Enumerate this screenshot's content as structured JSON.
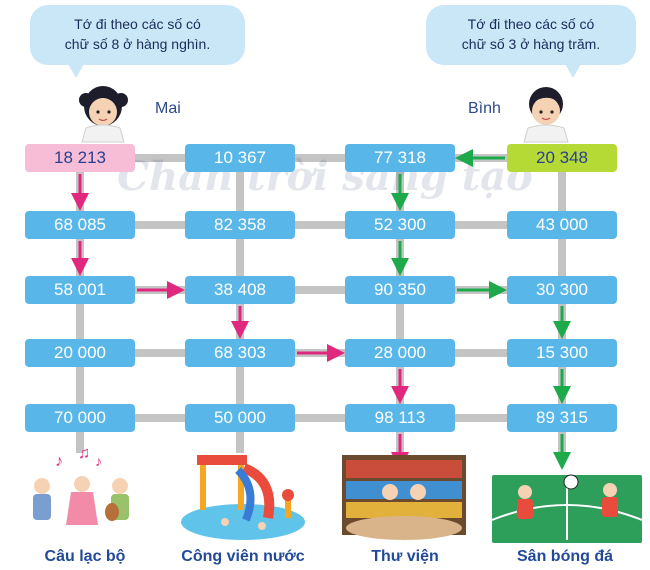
{
  "bubbles": {
    "left": {
      "line1": "Tớ đi theo các số có",
      "line2": "chữ số 8 ở hàng nghìn."
    },
    "right": {
      "line1": "Tớ đi theo các số có",
      "line2": "chữ số 3 ở hàng trăm."
    }
  },
  "characters": {
    "left_name": "Mai",
    "right_name": "Bình"
  },
  "watermark": "Chân trời sáng tạo",
  "grid": {
    "rows": [
      [
        "18 213",
        "10 367",
        "77 318",
        "20 348"
      ],
      [
        "68 085",
        "82 358",
        "52 300",
        "43 000"
      ],
      [
        "58 001",
        "38 408",
        "90 350",
        "30 300"
      ],
      [
        "20 000",
        "68 303",
        "28 000",
        "15 300"
      ],
      [
        "70 000",
        "50 000",
        "98 113",
        "89 315"
      ]
    ]
  },
  "destinations": [
    "Câu lạc bộ",
    "Công viên nước",
    "Thư viện",
    "Sân bóng đá"
  ],
  "colors": {
    "box": "#58b7e8",
    "mai_start": "#f7bcd6",
    "binh_start": "#b5da35",
    "mai_path": "#e0297e",
    "binh_path": "#1eaa4a",
    "road": "#c4c4c4",
    "bubble": "#c9e7f7",
    "label": "#234a9a"
  },
  "paths": {
    "mai": [
      [
        0,
        0
      ],
      [
        1,
        0
      ],
      [
        2,
        0
      ],
      [
        2,
        1
      ],
      [
        3,
        1
      ],
      [
        3,
        2
      ],
      [
        4,
        2
      ],
      [
        5,
        2
      ]
    ],
    "binh": [
      [
        0,
        3
      ],
      [
        0,
        2
      ],
      [
        1,
        2
      ],
      [
        2,
        2
      ],
      [
        2,
        3
      ],
      [
        3,
        3
      ],
      [
        4,
        3
      ],
      [
        5,
        3
      ]
    ]
  }
}
